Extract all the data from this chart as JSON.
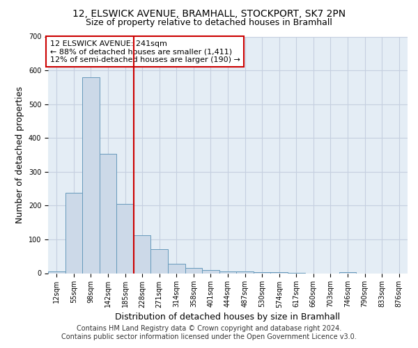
{
  "title_line1": "12, ELSWICK AVENUE, BRAMHALL, STOCKPORT, SK7 2PN",
  "title_line2": "Size of property relative to detached houses in Bramhall",
  "xlabel": "Distribution of detached houses by size in Bramhall",
  "ylabel": "Number of detached properties",
  "categories": [
    "12sqm",
    "55sqm",
    "98sqm",
    "142sqm",
    "185sqm",
    "228sqm",
    "271sqm",
    "314sqm",
    "358sqm",
    "401sqm",
    "444sqm",
    "487sqm",
    "530sqm",
    "574sqm",
    "617sqm",
    "660sqm",
    "703sqm",
    "746sqm",
    "790sqm",
    "833sqm",
    "876sqm"
  ],
  "values": [
    5,
    237,
    580,
    353,
    205,
    113,
    72,
    27,
    15,
    10,
    6,
    5,
    3,
    3,
    2,
    0,
    0,
    3,
    0,
    0,
    0
  ],
  "bar_color": "#ccd9e8",
  "bar_edge_color": "#6699bb",
  "vline_color": "#cc0000",
  "vline_bin_index": 5,
  "annotation_line1": "12 ELSWICK AVENUE: 241sqm",
  "annotation_line2": "← 88% of detached houses are smaller (1,411)",
  "annotation_line3": "12% of semi-detached houses are larger (190) →",
  "annotation_box_color": "#cc0000",
  "ylim": [
    0,
    700
  ],
  "yticks": [
    0,
    100,
    200,
    300,
    400,
    500,
    600,
    700
  ],
  "grid_color": "#c5cfe0",
  "background_color": "#e4edf5",
  "footer_line1": "Contains HM Land Registry data © Crown copyright and database right 2024.",
  "footer_line2": "Contains public sector information licensed under the Open Government Licence v3.0.",
  "title_fontsize": 10,
  "subtitle_fontsize": 9,
  "axis_label_fontsize": 9,
  "tick_fontsize": 7,
  "annotation_fontsize": 8,
  "footer_fontsize": 7
}
